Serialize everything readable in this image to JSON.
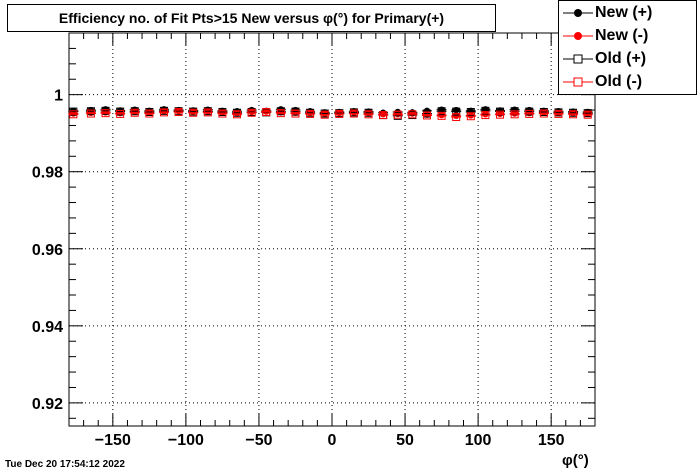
{
  "chart_data": {
    "type": "scatter",
    "title": "Efficiency no. of Fit Pts>15 New versus φ(°) for Primary(+)",
    "xlabel": "φ(°)",
    "ylabel": "",
    "xlim": [
      -180,
      180
    ],
    "ylim": [
      0.914,
      1.016
    ],
    "xticks": [
      -150,
      -100,
      -50,
      0,
      50,
      100,
      150
    ],
    "yticks": [
      0.92,
      0.94,
      0.96,
      0.98,
      1
    ],
    "ytick_labels": [
      "0.92",
      "0.94",
      "0.96",
      "0.98",
      "1"
    ],
    "grid": true,
    "legend_position": "top-right",
    "series": [
      {
        "name": "New (+)",
        "marker": "filled-circle",
        "color": "#000000",
        "x": [
          -177,
          -165,
          -155,
          -145,
          -135,
          -125,
          -115,
          -105,
          -95,
          -85,
          -75,
          -65,
          -55,
          -45,
          -35,
          -25,
          -15,
          -5,
          5,
          15,
          25,
          35,
          45,
          55,
          65,
          75,
          85,
          95,
          105,
          115,
          125,
          135,
          145,
          155,
          165,
          175
        ],
        "y": [
          0.9958,
          0.996,
          0.9962,
          0.9959,
          0.9961,
          0.9958,
          0.9962,
          0.996,
          0.9959,
          0.9961,
          0.9958,
          0.9957,
          0.996,
          0.9958,
          0.9962,
          0.996,
          0.9957,
          0.9954,
          0.9955,
          0.9957,
          0.9956,
          0.9953,
          0.9955,
          0.9954,
          0.9958,
          0.9961,
          0.996,
          0.9958,
          0.9962,
          0.9959,
          0.9961,
          0.996,
          0.9958,
          0.9957,
          0.9956,
          0.9955
        ]
      },
      {
        "name": "New (-)",
        "marker": "filled-circle",
        "color": "#ff0000",
        "x": [
          -177,
          -165,
          -155,
          -145,
          -135,
          -125,
          -115,
          -105,
          -95,
          -85,
          -75,
          -65,
          -55,
          -45,
          -35,
          -25,
          -15,
          -5,
          5,
          15,
          25,
          35,
          45,
          55,
          65,
          75,
          85,
          95,
          105,
          115,
          125,
          135,
          145,
          155,
          165,
          175
        ],
        "y": [
          0.9951,
          0.9953,
          0.9954,
          0.9952,
          0.9955,
          0.9953,
          0.9956,
          0.9957,
          0.9955,
          0.9956,
          0.9953,
          0.9951,
          0.9955,
          0.9956,
          0.9954,
          0.9953,
          0.9952,
          0.995,
          0.9952,
          0.9953,
          0.9951,
          0.9949,
          0.995,
          0.9951,
          0.9948,
          0.9947,
          0.9945,
          0.9946,
          0.9949,
          0.995,
          0.9951,
          0.9952,
          0.9953,
          0.9952,
          0.9951,
          0.995
        ]
      },
      {
        "name": "Old (+)",
        "marker": "open-square",
        "color": "#000000",
        "x": [
          -177,
          -165,
          -155,
          -145,
          -135,
          -125,
          -115,
          -105,
          -95,
          -85,
          -75,
          -65,
          -55,
          -45,
          -35,
          -25,
          -15,
          -5,
          5,
          15,
          25,
          35,
          45,
          55,
          65,
          75,
          85,
          95,
          105,
          115,
          125,
          135,
          145,
          155,
          165,
          175
        ],
        "y": [
          0.9956,
          0.9957,
          0.9958,
          0.9956,
          0.9957,
          0.9955,
          0.9958,
          0.9957,
          0.9956,
          0.9957,
          0.9955,
          0.9953,
          0.9955,
          0.9954,
          0.9957,
          0.9956,
          0.9953,
          0.9951,
          0.9952,
          0.9954,
          0.9953,
          0.9947,
          0.9945,
          0.9947,
          0.9951,
          0.9957,
          0.9956,
          0.9955,
          0.9958,
          0.9956,
          0.9957,
          0.9956,
          0.9955,
          0.9954,
          0.9953,
          0.9952
        ]
      },
      {
        "name": "Old (-)",
        "marker": "open-square",
        "color": "#ff0000",
        "x": [
          -177,
          -165,
          -155,
          -145,
          -135,
          -125,
          -115,
          -105,
          -95,
          -85,
          -75,
          -65,
          -55,
          -45,
          -35,
          -25,
          -15,
          -5,
          5,
          15,
          25,
          35,
          45,
          55,
          65,
          75,
          85,
          95,
          105,
          115,
          125,
          135,
          145,
          155,
          165,
          175
        ],
        "y": [
          0.9949,
          0.9951,
          0.9952,
          0.995,
          0.9953,
          0.9951,
          0.9954,
          0.9955,
          0.9953,
          0.9954,
          0.9951,
          0.9949,
          0.9953,
          0.9955,
          0.9952,
          0.9951,
          0.995,
          0.9948,
          0.995,
          0.9951,
          0.9949,
          0.9947,
          0.9948,
          0.9949,
          0.9946,
          0.9945,
          0.9942,
          0.9944,
          0.9947,
          0.9948,
          0.9949,
          0.995,
          0.9951,
          0.995,
          0.9949,
          0.9948
        ]
      }
    ]
  },
  "timestamp": "Tue Dec 20 17:54:12 2022"
}
